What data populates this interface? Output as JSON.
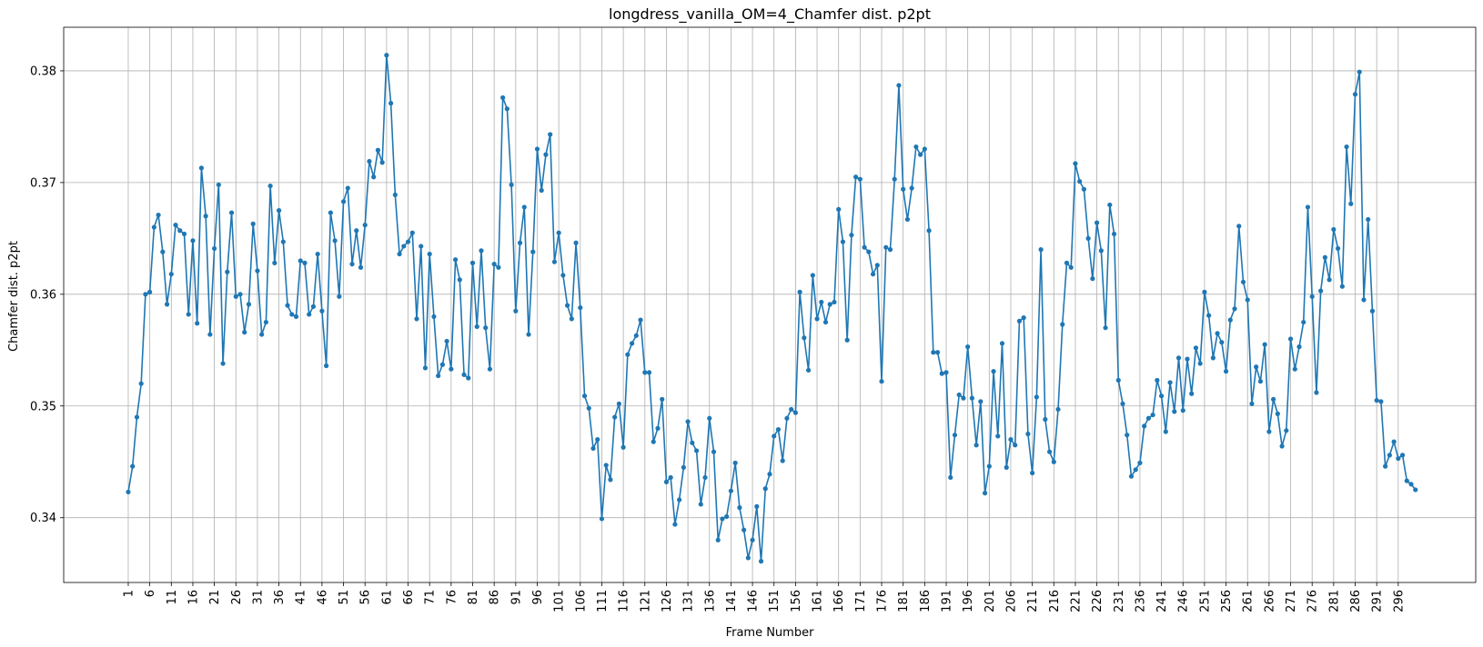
{
  "chart_data": {
    "type": "line",
    "title": "longdress_vanilla_OM=4_Chamfer dist. p2pt",
    "xlabel": "Frame Number",
    "ylabel": "Chamfer dist. p2pt",
    "xlim": [
      -14,
      314
    ],
    "ylim": [
      0.3342,
      0.3839
    ],
    "grid": true,
    "line_color": "#1f77b4",
    "x_ticks": [
      1,
      6,
      11,
      16,
      21,
      26,
      31,
      36,
      41,
      46,
      51,
      56,
      61,
      66,
      71,
      76,
      81,
      86,
      91,
      96,
      101,
      106,
      111,
      116,
      121,
      126,
      131,
      136,
      141,
      146,
      151,
      156,
      161,
      166,
      171,
      176,
      181,
      186,
      191,
      196,
      201,
      206,
      211,
      216,
      221,
      226,
      231,
      236,
      241,
      246,
      251,
      256,
      261,
      266,
      271,
      276,
      281,
      286,
      291,
      296
    ],
    "y_ticks": [
      0.34,
      0.35,
      0.36,
      0.37,
      0.38
    ],
    "y_tick_labels": [
      "0.34",
      "0.35",
      "0.36",
      "0.37",
      "0.38"
    ],
    "x_start": 1,
    "values": [
      0.3423,
      0.3446,
      0.349,
      0.352,
      0.36,
      0.3602,
      0.366,
      0.3671,
      0.3638,
      0.3591,
      0.3618,
      0.3662,
      0.3657,
      0.3654,
      0.3582,
      0.3648,
      0.3574,
      0.3713,
      0.367,
      0.3564,
      0.3641,
      0.3698,
      0.3538,
      0.362,
      0.3673,
      0.3598,
      0.36,
      0.3566,
      0.3591,
      0.3663,
      0.3621,
      0.3564,
      0.3575,
      0.3697,
      0.3628,
      0.3675,
      0.3647,
      0.359,
      0.3582,
      0.358,
      0.363,
      0.3628,
      0.3582,
      0.3589,
      0.3636,
      0.3585,
      0.3536,
      0.3673,
      0.3648,
      0.3598,
      0.3683,
      0.3695,
      0.3627,
      0.3657,
      0.3624,
      0.3662,
      0.3719,
      0.3705,
      0.3729,
      0.3718,
      0.3814,
      0.3771,
      0.3689,
      0.3636,
      0.3643,
      0.3647,
      0.3655,
      0.3578,
      0.3643,
      0.3534,
      0.3636,
      0.358,
      0.3527,
      0.3537,
      0.3558,
      0.3533,
      0.3631,
      0.3613,
      0.3528,
      0.3525,
      0.3628,
      0.3571,
      0.3639,
      0.357,
      0.3533,
      0.3627,
      0.3624,
      0.3776,
      0.3766,
      0.3698,
      0.3585,
      0.3646,
      0.3678,
      0.3564,
      0.3638,
      0.373,
      0.3693,
      0.3725,
      0.3743,
      0.3629,
      0.3655,
      0.3617,
      0.359,
      0.3578,
      0.3646,
      0.3588,
      0.3509,
      0.3498,
      0.3462,
      0.347,
      0.3399,
      0.3447,
      0.3434,
      0.349,
      0.3502,
      0.3463,
      0.3546,
      0.3556,
      0.3563,
      0.3577,
      0.353,
      0.353,
      0.3468,
      0.348,
      0.3506,
      0.3432,
      0.3436,
      0.3394,
      0.3416,
      0.3445,
      0.3486,
      0.3467,
      0.346,
      0.3412,
      0.3436,
      0.3489,
      0.3459,
      0.338,
      0.3399,
      0.3401,
      0.3424,
      0.3449,
      0.3409,
      0.3389,
      0.3364,
      0.338,
      0.341,
      0.3361,
      0.3426,
      0.3439,
      0.3473,
      0.3479,
      0.3451,
      0.3489,
      0.3497,
      0.3494,
      0.3602,
      0.3561,
      0.3532,
      0.3617,
      0.3578,
      0.3593,
      0.3575,
      0.3591,
      0.3593,
      0.3676,
      0.3647,
      0.3559,
      0.3653,
      0.3705,
      0.3703,
      0.3642,
      0.3638,
      0.3618,
      0.3626,
      0.3522,
      0.3642,
      0.364,
      0.3703,
      0.3787,
      0.3694,
      0.3667,
      0.3695,
      0.3732,
      0.3725,
      0.373,
      0.3657,
      0.3548,
      0.3548,
      0.3529,
      0.353,
      0.3436,
      0.3474,
      0.351,
      0.3507,
      0.3553,
      0.3507,
      0.3465,
      0.3504,
      0.3422,
      0.3446,
      0.3531,
      0.3473,
      0.3556,
      0.3445,
      0.347,
      0.3465,
      0.3576,
      0.3579,
      0.3475,
      0.344,
      0.3508,
      0.364,
      0.3488,
      0.3459,
      0.345,
      0.3497,
      0.3573,
      0.3628,
      0.3624,
      0.3717,
      0.3701,
      0.3694,
      0.365,
      0.3614,
      0.3664,
      0.3639,
      0.357,
      0.368,
      0.3654,
      0.3523,
      0.3502,
      0.3474,
      0.3437,
      0.3443,
      0.3449,
      0.3482,
      0.3489,
      0.3492,
      0.3523,
      0.3509,
      0.3477,
      0.3521,
      0.3495,
      0.3543,
      0.3496,
      0.3542,
      0.3511,
      0.3552,
      0.3538,
      0.3602,
      0.3581,
      0.3543,
      0.3565,
      0.3557,
      0.3531,
      0.3577,
      0.3587,
      0.3661,
      0.3611,
      0.3595,
      0.3502,
      0.3535,
      0.3522,
      0.3555,
      0.3477,
      0.3506,
      0.3493,
      0.3464,
      0.3478,
      0.356,
      0.3533,
      0.3553,
      0.3575,
      0.3678,
      0.3598,
      0.3512,
      0.3603,
      0.3633,
      0.3613,
      0.3658,
      0.3641,
      0.3607,
      0.3732,
      0.3681,
      0.3779,
      0.3799,
      0.3595,
      0.3667,
      0.3585,
      0.3505,
      0.3504,
      0.3446,
      0.3456,
      0.3468,
      0.3453,
      0.3456,
      0.3433,
      0.343,
      0.3425
    ]
  }
}
